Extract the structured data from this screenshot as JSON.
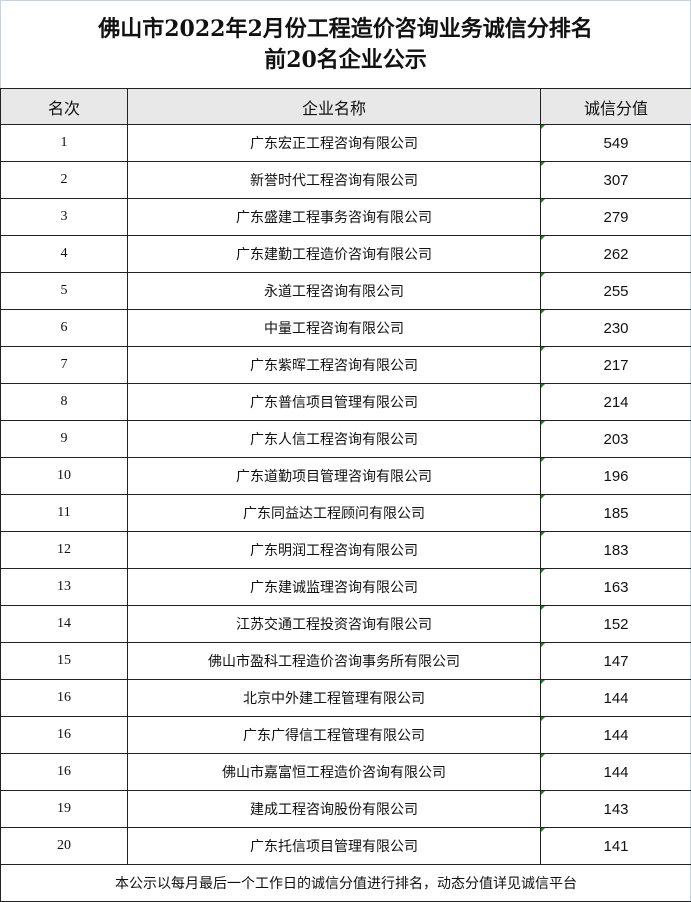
{
  "title": {
    "line1": "佛山市2022年2月份工程造价咨询业务诚信分排名",
    "line2": "前20名企业公示"
  },
  "headers": {
    "rank": "名次",
    "company": "企业名称",
    "score": "诚信分值"
  },
  "rows": [
    {
      "rank": "1",
      "company": "广东宏正工程咨询有限公司",
      "score": "549"
    },
    {
      "rank": "2",
      "company": "新誉时代工程咨询有限公司",
      "score": "307"
    },
    {
      "rank": "3",
      "company": "广东盛建工程事务咨询有限公司",
      "score": "279"
    },
    {
      "rank": "4",
      "company": "广东建勤工程造价咨询有限公司",
      "score": "262"
    },
    {
      "rank": "5",
      "company": "永道工程咨询有限公司",
      "score": "255"
    },
    {
      "rank": "6",
      "company": "中量工程咨询有限公司",
      "score": "230"
    },
    {
      "rank": "7",
      "company": "广东紫晖工程咨询有限公司",
      "score": "217"
    },
    {
      "rank": "8",
      "company": "广东普信项目管理有限公司",
      "score": "214"
    },
    {
      "rank": "9",
      "company": "广东人信工程咨询有限公司",
      "score": "203"
    },
    {
      "rank": "10",
      "company": "广东道勤项目管理咨询有限公司",
      "score": "196"
    },
    {
      "rank": "11",
      "company": "广东同益达工程顾问有限公司",
      "score": "185"
    },
    {
      "rank": "12",
      "company": "广东明润工程咨询有限公司",
      "score": "183"
    },
    {
      "rank": "13",
      "company": "广东建诚监理咨询有限公司",
      "score": "163"
    },
    {
      "rank": "14",
      "company": "江苏交通工程投资咨询有限公司",
      "score": "152"
    },
    {
      "rank": "15",
      "company": "佛山市盈科工程造价咨询事务所有限公司",
      "score": "147"
    },
    {
      "rank": "16",
      "company": "北京中外建工程管理有限公司",
      "score": "144"
    },
    {
      "rank": "16",
      "company": "广东广得信工程管理有限公司",
      "score": "144"
    },
    {
      "rank": "16",
      "company": "佛山市嘉富恒工程造价咨询有限公司",
      "score": "144"
    },
    {
      "rank": "19",
      "company": "建成工程咨询股份有限公司",
      "score": "143"
    },
    {
      "rank": "20",
      "company": "广东托信项目管理有限公司",
      "score": "141"
    }
  ],
  "footer": "本公示以每月最后一个工作日的诚信分值进行排名，动态分值详见诚信平台"
}
